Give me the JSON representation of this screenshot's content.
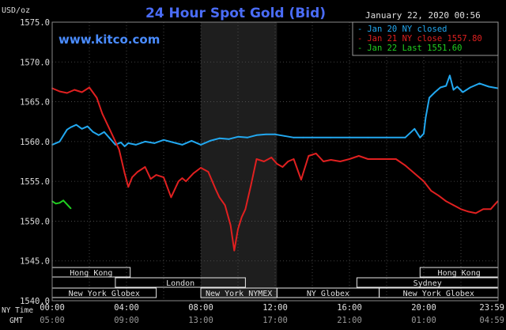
{
  "chart_data": {
    "type": "line",
    "title": "24 Hour Spot Gold (Bid)",
    "date_label": "January 22, 2020 00:56",
    "brand": "www.kitco.com",
    "y_unit": "USD/oz",
    "ylim": [
      1540.0,
      1575.0
    ],
    "y_ticks": [
      "1575.0",
      "1570.0",
      "1565.0",
      "1560.0",
      "1555.0",
      "1550.0",
      "1545.0",
      "1540.0"
    ],
    "xlim": [
      0,
      24
    ],
    "x_ticks_ny": [
      "00:00",
      "04:00",
      "08:00",
      "12:00",
      "16:00",
      "20:00",
      "23:59"
    ],
    "x_ticks_gmt": [
      "05:00",
      "09:00",
      "13:00",
      "17:00",
      "21:00",
      "01:00",
      "04:59"
    ],
    "x_tick_hours": [
      0,
      4,
      8,
      12,
      16,
      20,
      23.98
    ],
    "row_label_ny": "NY Time",
    "row_label_gmt": "GMT",
    "grid": true,
    "shaded_session_hours": [
      8.0,
      12.1
    ],
    "legend_position": "top-right",
    "sessions": [
      {
        "label": "Hong Kong",
        "start": 0,
        "end": 4.2,
        "row": 0
      },
      {
        "label": "Hong Kong",
        "start": 19.8,
        "end": 24,
        "row": 0
      },
      {
        "label": "London",
        "start": 3.4,
        "end": 10.4,
        "row": 1
      },
      {
        "label": "Sydney",
        "start": 16.4,
        "end": 24,
        "row": 1
      },
      {
        "label": "New York Globex",
        "start": 0,
        "end": 5.6,
        "row": 2
      },
      {
        "label": "New York NYMEX",
        "start": 8.0,
        "end": 12.1,
        "row": 2
      },
      {
        "label": "NY Globex",
        "start": 12.1,
        "end": 17.6,
        "row": 2
      },
      {
        "label": "New York Globex",
        "start": 17.6,
        "end": 24,
        "row": 2
      }
    ],
    "series": [
      {
        "name": "Jan 20 NY closed",
        "legend": "Jan 20 NY closed",
        "color": "#22a8f0",
        "x": [
          0,
          0.4,
          0.8,
          1.0,
          1.3,
          1.6,
          1.9,
          2.2,
          2.5,
          2.8,
          3.1,
          3.4,
          3.7,
          3.9,
          4.1,
          4.5,
          5.0,
          5.5,
          6.0,
          6.5,
          7.0,
          7.5,
          8.0,
          8.5,
          9.0,
          9.5,
          10.0,
          10.5,
          11.0,
          11.5,
          12.0,
          12.5,
          13.0,
          13.5,
          14.0,
          15.0,
          16.0,
          17.0,
          18.0,
          19.0,
          19.5,
          19.8,
          20.0,
          20.1,
          20.3,
          20.6,
          20.9,
          21.2,
          21.4,
          21.6,
          21.8,
          22.1,
          22.5,
          23.0,
          23.5,
          23.98
        ],
        "values": [
          1559.6,
          1560.0,
          1561.5,
          1561.8,
          1562.1,
          1561.6,
          1561.9,
          1561.2,
          1560.8,
          1561.2,
          1560.4,
          1559.6,
          1559.9,
          1559.4,
          1559.8,
          1559.6,
          1560.0,
          1559.8,
          1560.2,
          1559.9,
          1559.6,
          1560.1,
          1559.6,
          1560.1,
          1560.4,
          1560.3,
          1560.6,
          1560.5,
          1560.8,
          1560.9,
          1560.9,
          1560.7,
          1560.5,
          1560.5,
          1560.5,
          1560.5,
          1560.5,
          1560.5,
          1560.5,
          1560.5,
          1561.6,
          1560.5,
          1561.0,
          1563.0,
          1565.5,
          1566.2,
          1566.8,
          1567.0,
          1568.3,
          1566.5,
          1566.9,
          1566.2,
          1566.8,
          1567.3,
          1566.9,
          1566.7
        ]
      },
      {
        "name": "Jan 21 NY close 1557.80",
        "legend": "Jan 21 NY close 1557.80",
        "color": "#e02020",
        "x": [
          0,
          0.4,
          0.8,
          1.2,
          1.6,
          2.0,
          2.4,
          2.7,
          3.0,
          3.3,
          3.6,
          3.9,
          4.1,
          4.3,
          4.6,
          5.0,
          5.3,
          5.6,
          6.0,
          6.4,
          6.8,
          7.0,
          7.2,
          7.6,
          8.0,
          8.4,
          8.8,
          9.0,
          9.3,
          9.6,
          9.8,
          10.0,
          10.2,
          10.4,
          10.7,
          11.0,
          11.4,
          11.8,
          12.1,
          12.4,
          12.7,
          13.0,
          13.4,
          13.8,
          14.2,
          14.6,
          15.0,
          15.5,
          16.0,
          16.5,
          17.0,
          17.5,
          18.0,
          18.5,
          19.0,
          19.5,
          20.0,
          20.4,
          20.8,
          21.2,
          21.6,
          22.0,
          22.4,
          22.8,
          23.2,
          23.6,
          23.98
        ],
        "values": [
          1566.7,
          1566.3,
          1566.1,
          1566.5,
          1566.2,
          1566.8,
          1565.5,
          1563.5,
          1562.0,
          1560.5,
          1559.0,
          1556.0,
          1554.3,
          1555.5,
          1556.2,
          1556.8,
          1555.3,
          1555.8,
          1555.5,
          1553.0,
          1555.0,
          1555.4,
          1555.0,
          1556.0,
          1556.7,
          1556.2,
          1554.0,
          1553.0,
          1552.0,
          1549.5,
          1546.3,
          1549.0,
          1550.5,
          1551.5,
          1554.5,
          1557.8,
          1557.5,
          1558.0,
          1557.2,
          1556.8,
          1557.5,
          1557.8,
          1555.2,
          1558.2,
          1558.5,
          1557.5,
          1557.7,
          1557.5,
          1557.8,
          1558.2,
          1557.8,
          1557.8,
          1557.8,
          1557.8,
          1557.0,
          1556.0,
          1555.0,
          1553.8,
          1553.2,
          1552.5,
          1552.0,
          1551.5,
          1551.2,
          1551.0,
          1551.5,
          1551.5,
          1552.5
        ]
      },
      {
        "name": "Jan 22 Last 1551.60",
        "legend": "Jan 22 Last 1551.60",
        "color": "#20d020",
        "x": [
          0,
          0.2,
          0.4,
          0.6,
          0.8,
          1.0
        ],
        "values": [
          1552.5,
          1552.2,
          1552.3,
          1552.6,
          1552.1,
          1551.6
        ]
      }
    ]
  }
}
